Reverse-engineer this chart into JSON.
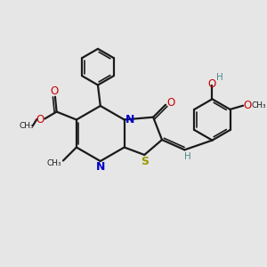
{
  "bg_color": "#e6e6e6",
  "bond_color": "#1a1a1a",
  "N_color": "#0000cc",
  "O_color": "#cc0000",
  "S_color": "#999900",
  "H_color": "#4a8a8a",
  "figsize": [
    3.0,
    3.0
  ],
  "dpi": 100,
  "xlim": [
    0,
    10
  ],
  "ylim": [
    0,
    10
  ]
}
